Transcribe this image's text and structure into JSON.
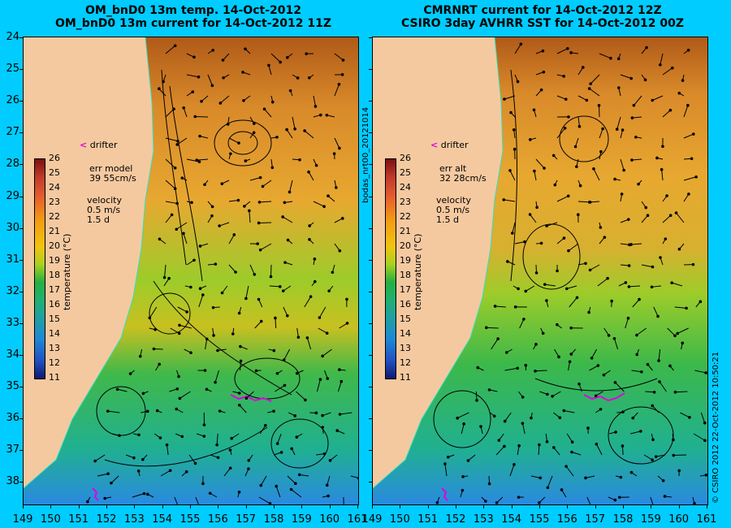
{
  "titles": {
    "left_line1": "OM_bnD0 13m temp. 14-Oct-2012",
    "left_line2": "OM_bnD0 13m current for 14-Oct-2012 11Z",
    "right_line1": "CMRNRT current for 14-Oct-2012 12Z",
    "right_line2": "CSIRO 3day AVHRR SST for 14-Oct-2012 00Z"
  },
  "lat_labels": [
    "24",
    "25",
    "26",
    "27",
    "28",
    "29",
    "30",
    "31",
    "32",
    "33",
    "34",
    "35",
    "36",
    "37",
    "38"
  ],
  "lon_labels_left": [
    "149",
    "150",
    "151",
    "152",
    "153",
    "154",
    "155",
    "156",
    "157",
    "158",
    "159",
    "160",
    "161"
  ],
  "lon_labels_right": [
    "149",
    "150",
    "151",
    "152",
    "153",
    "154",
    "155",
    "156",
    "157",
    "158",
    "159",
    "160",
    "161"
  ],
  "colorbar": {
    "ticks": [
      "26",
      "25",
      "24",
      "23",
      "22",
      "21",
      "20",
      "19",
      "18",
      "17",
      "16",
      "15",
      "14",
      "13",
      "12",
      "11"
    ],
    "title": "temperature (°C)"
  },
  "left_panel": {
    "drifter": "drifter",
    "err_line1": "err model",
    "err_line2": "39 55cm/s",
    "vel_line1": "velocity",
    "vel_line2": "0.5 m/s",
    "vel_line3": "1.5 d"
  },
  "right_panel": {
    "drifter": "drifter",
    "err_line1": "err alt",
    "err_line2": "32 28cm/s",
    "vel_line1": "velocity",
    "vel_line2": "0.5 m/s",
    "vel_line3": "1.5 d"
  },
  "side_text_middle": "bodas_nrt00_20121014",
  "side_text_right": "© CSIRO 2012   22-Oct-2012 10:50:21",
  "colors": {
    "background": "#00ccff",
    "land": "#f5c9a0",
    "drifter_marker": "#e000e0"
  }
}
